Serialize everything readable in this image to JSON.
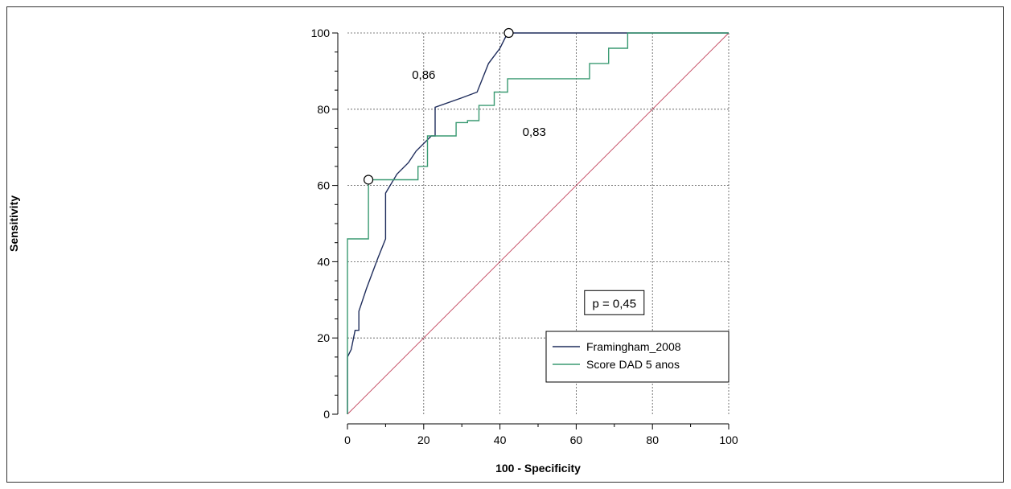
{
  "chart_data": {
    "type": "line",
    "xlabel": "100 - Specificity",
    "ylabel": "Sensitivity",
    "xlim": [
      0,
      100
    ],
    "ylim": [
      0,
      100
    ],
    "x_ticks": [
      0,
      20,
      40,
      60,
      80,
      100
    ],
    "y_ticks": [
      0,
      20,
      40,
      60,
      80,
      100
    ],
    "grid": true,
    "legend_position": "bottom-right",
    "series": [
      {
        "name": "Framingham_2008",
        "color": "#1f2d5c",
        "x": [
          0,
          0,
          1,
          2,
          3,
          3,
          5,
          8,
          10,
          10,
          13,
          16,
          18,
          22,
          23,
          23,
          30,
          34,
          37,
          40,
          42,
          73,
          100
        ],
        "y": [
          0,
          15,
          17,
          22,
          22,
          27,
          33,
          41,
          46,
          58,
          63,
          66,
          69,
          73,
          73,
          80.5,
          83,
          84.5,
          92,
          96,
          100,
          100,
          100
        ]
      },
      {
        "name": "Score DAD 5 anos",
        "color": "#3a9a72",
        "x": [
          0,
          0,
          5.5,
          5.5,
          18.5,
          18.5,
          21,
          21,
          28.5,
          28.5,
          31.5,
          31.5,
          34.5,
          34.5,
          38.5,
          38.5,
          42,
          42,
          63.5,
          63.5,
          68.5,
          68.5,
          73.5,
          73.5,
          100
        ],
        "y": [
          0,
          46,
          46,
          61.5,
          61.5,
          65,
          65,
          73,
          73,
          76.5,
          76.5,
          77,
          77,
          81,
          81,
          84.5,
          84.5,
          88,
          88,
          92,
          92,
          96,
          96,
          100,
          100
        ]
      },
      {
        "name": "",
        "color": "#c0405a",
        "x": [
          0,
          100
        ],
        "y": [
          0,
          100
        ]
      }
    ],
    "markers": [
      {
        "x": 42.3,
        "y": 100
      },
      {
        "x": 5.5,
        "y": 61.5
      }
    ],
    "annotations": [
      {
        "text": "0,86",
        "x": 20,
        "y": 88
      },
      {
        "text": "0,83",
        "x": 49,
        "y": 73
      },
      {
        "text": "p = 0,45",
        "x": 70,
        "y": 28
      }
    ]
  }
}
